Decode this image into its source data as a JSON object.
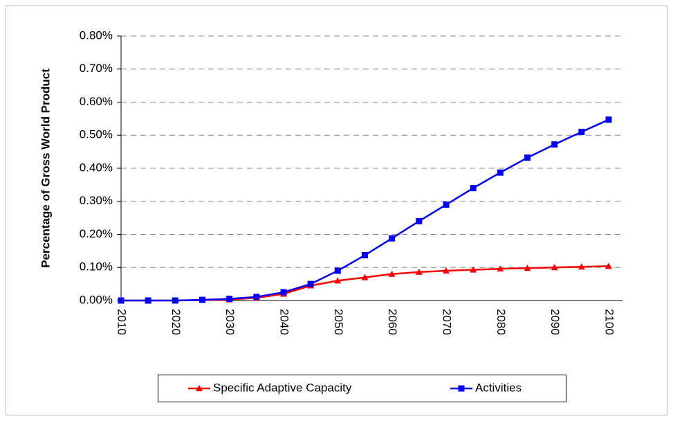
{
  "chart_data": {
    "type": "line",
    "y_label": "Percentage of Gross World Product",
    "categories": [
      "2010",
      null,
      "2020",
      null,
      "2030",
      null,
      "2040",
      null,
      "2050",
      null,
      "2060",
      null,
      "2070",
      null,
      "2080",
      null,
      "2090",
      null,
      "2100"
    ],
    "series": [
      {
        "name": "Specific Adaptive Capacity",
        "color": "#ff0000",
        "marker": "triangle",
        "values": [
          0,
          0,
          0,
          0.001,
          0.003,
          0.008,
          0.02,
          0.045,
          0.06,
          0.07,
          0.08,
          0.086,
          0.09,
          0.093,
          0.096,
          0.098,
          0.1,
          0.102,
          0.104
        ]
      },
      {
        "name": "Activities",
        "color": "#0000ff",
        "marker": "square",
        "values": [
          0,
          0,
          0,
          0.002,
          0.005,
          0.011,
          0.025,
          0.05,
          0.09,
          0.137,
          0.188,
          0.24,
          0.29,
          0.34,
          0.387,
          0.432,
          0.472,
          0.51,
          0.547
        ]
      }
    ],
    "ylim": [
      0,
      0.8
    ],
    "yticks": [
      {
        "value": 0,
        "label": "0.00%"
      },
      {
        "value": 0.1,
        "label": "0.10%"
      },
      {
        "value": 0.2,
        "label": "0.20%"
      },
      {
        "value": 0.3,
        "label": "0.30%"
      },
      {
        "value": 0.4,
        "label": "0.40%"
      },
      {
        "value": 0.5,
        "label": "0.50%"
      },
      {
        "value": 0.6,
        "label": "0.60%"
      },
      {
        "value": 0.7,
        "label": "0.70%"
      },
      {
        "value": 0.8,
        "label": "0.80%"
      }
    ],
    "grid": true,
    "legend": "bottom"
  }
}
